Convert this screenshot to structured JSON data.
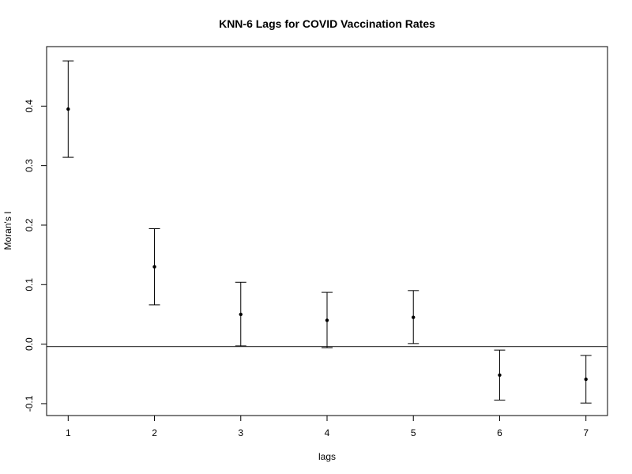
{
  "chart_data": {
    "type": "scatter",
    "title": "KNN-6 Lags for COVID Vaccination Rates",
    "xlabel": "lags",
    "ylabel": "Moran's  I",
    "xlim": [
      0.75,
      7.25
    ],
    "ylim": [
      -0.12,
      0.5
    ],
    "x_ticks": [
      1,
      2,
      3,
      4,
      5,
      6,
      7
    ],
    "y_ticks": [
      -0.1,
      0.0,
      0.1,
      0.2,
      0.3,
      0.4
    ],
    "y_tick_labels": [
      "-0.1",
      "0.0",
      "0.1",
      "0.2",
      "0.3",
      "0.4"
    ],
    "reference_line_y": -0.004,
    "grid": false,
    "points": [
      {
        "lag": 1,
        "value": 0.395,
        "lower": 0.314,
        "upper": 0.476
      },
      {
        "lag": 2,
        "value": 0.13,
        "lower": 0.066,
        "upper": 0.194
      },
      {
        "lag": 3,
        "value": 0.05,
        "lower": -0.003,
        "upper": 0.104
      },
      {
        "lag": 4,
        "value": 0.04,
        "lower": -0.006,
        "upper": 0.087
      },
      {
        "lag": 5,
        "value": 0.045,
        "lower": 0.001,
        "upper": 0.09
      },
      {
        "lag": 6,
        "value": -0.052,
        "lower": -0.094,
        "upper": -0.01
      },
      {
        "lag": 7,
        "value": -0.059,
        "lower": -0.099,
        "upper": -0.019
      }
    ]
  }
}
